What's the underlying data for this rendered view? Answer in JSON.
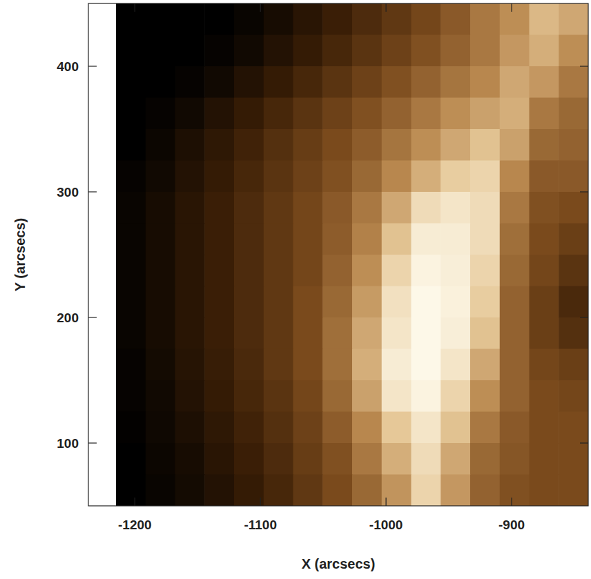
{
  "chart_data": {
    "type": "heatmap",
    "xlabel": "X (arcsecs)",
    "ylabel": "Y (arcsecs)",
    "xlim": [
      -1237,
      -839
    ],
    "ylim": [
      50,
      450
    ],
    "xticks": [
      -1200,
      -1100,
      -1000,
      -900
    ],
    "yticks": [
      100,
      200,
      300,
      400
    ],
    "zlim": [
      0,
      100
    ],
    "x_edges": [
      -1215,
      -1191.5,
      -1168,
      -1144.5,
      -1121,
      -1097.5,
      -1074,
      -1050.5,
      -1027,
      -1003.5,
      -980,
      -956.5,
      -933,
      -909.5,
      -886,
      -862.5,
      -839
    ],
    "y_edges": [
      450,
      425,
      400,
      375,
      350,
      325,
      300,
      275,
      250,
      225,
      200,
      175,
      150,
      125,
      100,
      75,
      50
    ],
    "cells": [
      [
        0,
        0,
        0,
        0,
        3,
        8,
        14,
        20,
        26,
        32,
        38,
        45,
        55,
        62,
        75,
        70
      ],
      [
        0,
        0,
        0,
        2,
        6,
        12,
        18,
        24,
        30,
        36,
        42,
        48,
        55,
        65,
        72,
        62
      ],
      [
        0,
        0,
        2,
        6,
        12,
        18,
        24,
        30,
        36,
        42,
        48,
        54,
        60,
        70,
        65,
        55
      ],
      [
        0,
        2,
        6,
        12,
        18,
        24,
        30,
        36,
        42,
        48,
        55,
        62,
        68,
        72,
        55,
        50
      ],
      [
        0,
        4,
        10,
        16,
        22,
        28,
        34,
        40,
        46,
        54,
        62,
        70,
        78,
        68,
        50,
        48
      ],
      [
        2,
        6,
        12,
        18,
        24,
        30,
        36,
        42,
        50,
        60,
        72,
        82,
        85,
        60,
        45,
        45
      ],
      [
        3,
        8,
        14,
        20,
        26,
        32,
        38,
        45,
        55,
        70,
        88,
        92,
        88,
        55,
        42,
        40
      ],
      [
        3,
        8,
        14,
        20,
        26,
        32,
        38,
        46,
        58,
        78,
        95,
        95,
        88,
        52,
        40,
        35
      ],
      [
        3,
        8,
        14,
        20,
        26,
        32,
        38,
        48,
        62,
        85,
        98,
        96,
        85,
        50,
        38,
        30
      ],
      [
        3,
        8,
        14,
        20,
        26,
        32,
        40,
        50,
        66,
        90,
        100,
        97,
        82,
        48,
        35,
        25
      ],
      [
        3,
        8,
        14,
        20,
        26,
        32,
        40,
        52,
        70,
        92,
        100,
        96,
        78,
        48,
        35,
        28
      ],
      [
        2,
        7,
        13,
        19,
        25,
        32,
        40,
        52,
        72,
        95,
        100,
        92,
        70,
        48,
        38,
        35
      ],
      [
        2,
        6,
        12,
        18,
        24,
        30,
        38,
        50,
        68,
        92,
        98,
        85,
        62,
        48,
        40,
        38
      ],
      [
        1,
        5,
        10,
        16,
        22,
        28,
        36,
        46,
        60,
        80,
        92,
        78,
        55,
        45,
        40,
        40
      ],
      [
        0,
        4,
        8,
        14,
        20,
        26,
        34,
        42,
        55,
        72,
        88,
        70,
        50,
        44,
        40,
        40
      ],
      [
        0,
        3,
        7,
        12,
        18,
        24,
        32,
        40,
        50,
        64,
        85,
        65,
        48,
        42,
        40,
        40
      ]
    ]
  }
}
